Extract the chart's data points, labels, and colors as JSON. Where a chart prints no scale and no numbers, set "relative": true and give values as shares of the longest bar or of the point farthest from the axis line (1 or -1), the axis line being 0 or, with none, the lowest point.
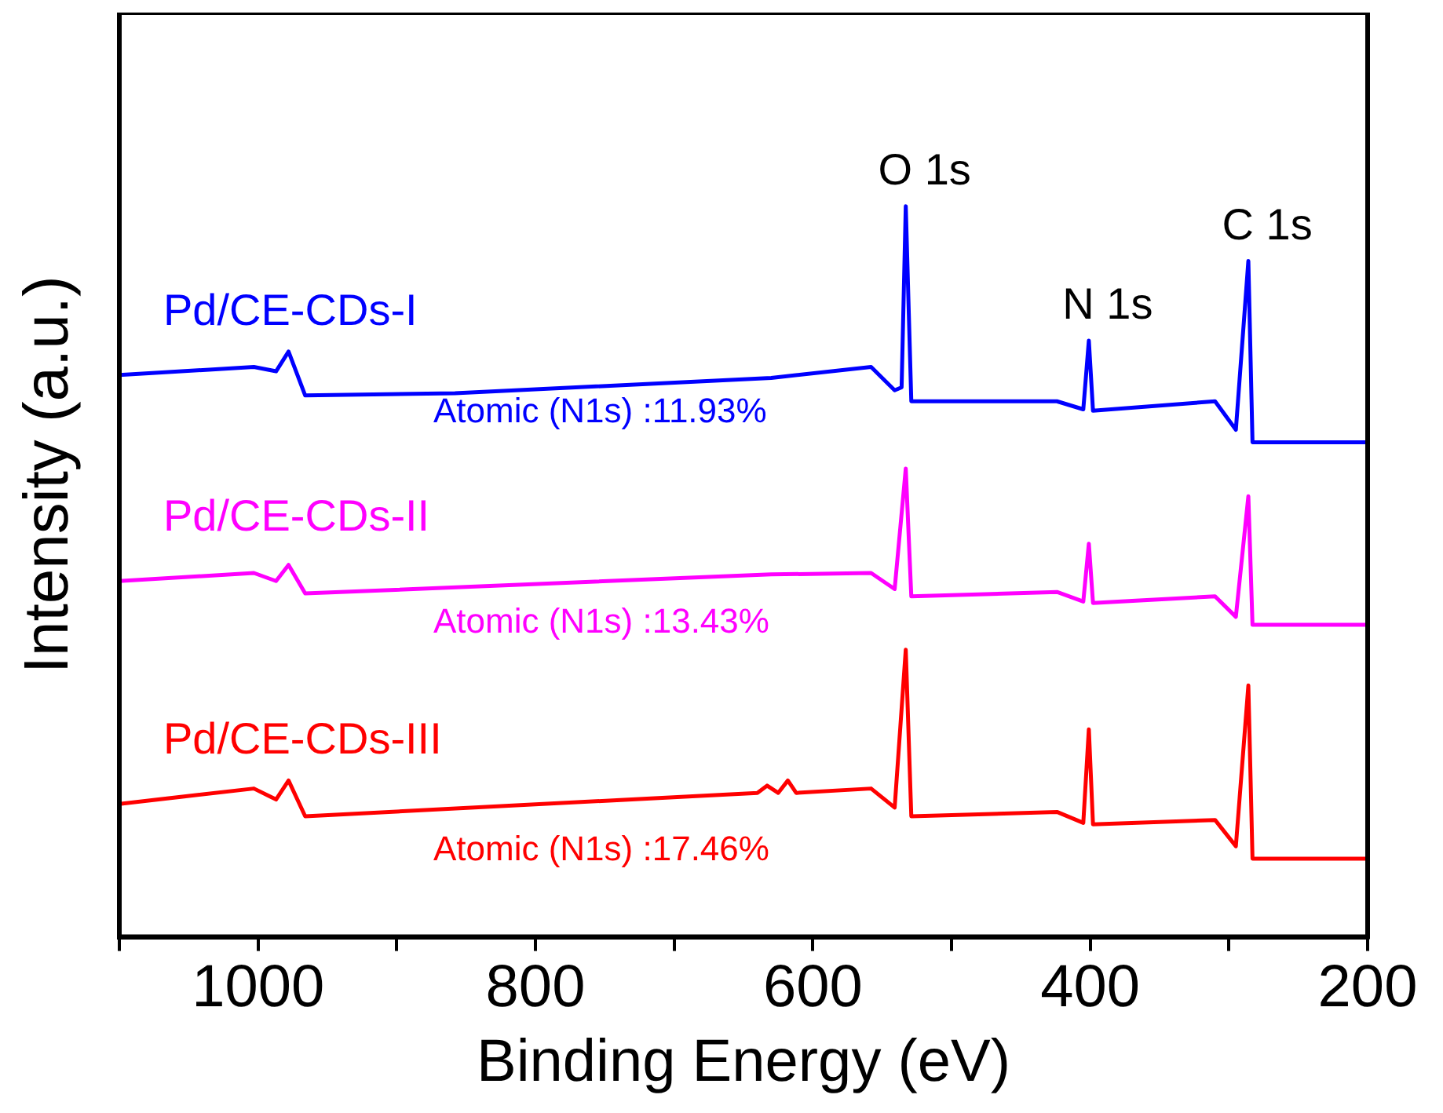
{
  "chart_data": {
    "type": "line",
    "relative": true,
    "xlabel": "Binding Energy (eV)",
    "ylabel": "Intensity (a.u.)",
    "xlim": [
      1100,
      200
    ],
    "xticks": [
      {
        "value": 1100,
        "label": null
      },
      1000,
      {
        "value": 900,
        "label": null
      },
      800,
      {
        "value": 700,
        "label": null
      },
      600,
      {
        "value": 500,
        "label": null
      },
      400,
      {
        "value": 300,
        "label": null
      },
      200
    ],
    "grid": false,
    "legend": false,
    "marker": "none",
    "line_style": "solid",
    "series": [
      {
        "name": "Pd/CE-CDs-I",
        "color": "#0000ff",
        "x": [
          1100,
          1003,
          987,
          978,
          966,
          858,
          630,
          558,
          541,
          536,
          533,
          529,
          424,
          405,
          401,
          398,
          310,
          295,
          286,
          283,
          200
        ],
        "values": [
          0.769,
          0.78,
          0.774,
          0.801,
          0.741,
          0.744,
          0.765,
          0.78,
          0.748,
          0.752,
          1,
          0.733,
          0.733,
          0.722,
          0.816,
          0.72,
          0.733,
          0.694,
          0.925,
          0.677,
          0.677
        ]
      },
      {
        "name": "Pd/CE-CDs-II",
        "color": "#ff00ff",
        "x": [
          1100,
          1003,
          987,
          978,
          966,
          630,
          558,
          541,
          533,
          529,
          424,
          405,
          401,
          398,
          310,
          295,
          286,
          283,
          200
        ],
        "values": [
          0.487,
          0.498,
          0.487,
          0.509,
          0.47,
          0.496,
          0.498,
          0.476,
          0.641,
          0.466,
          0.472,
          0.459,
          0.538,
          0.457,
          0.466,
          0.438,
          0.603,
          0.427,
          0.427
        ]
      },
      {
        "name": "Pd/CE-CDs-III",
        "color": "#ff0000",
        "x": [
          1100,
          1003,
          987,
          978,
          966,
          640,
          633,
          625,
          618,
          612,
          558,
          541,
          533,
          529,
          424,
          405,
          401,
          398,
          310,
          295,
          286,
          283,
          200
        ],
        "values": [
          0.182,
          0.203,
          0.188,
          0.214,
          0.165,
          0.197,
          0.207,
          0.197,
          0.214,
          0.197,
          0.203,
          0.177,
          0.393,
          0.165,
          0.171,
          0.156,
          0.284,
          0.154,
          0.16,
          0.124,
          0.344,
          0.107,
          0.107
        ]
      }
    ],
    "annotations": [
      "Atomic (N1s) :11.93%",
      "Atomic (N1s) :13.43%",
      "Atomic (N1s) :17.46%",
      {
        "text": "O 1s",
        "x": 533,
        "y": 1
      },
      {
        "text": "N 1s",
        "x": 401,
        "y": 0.816
      },
      {
        "text": "C 1s",
        "x": 286,
        "y": 0.925
      }
    ]
  }
}
